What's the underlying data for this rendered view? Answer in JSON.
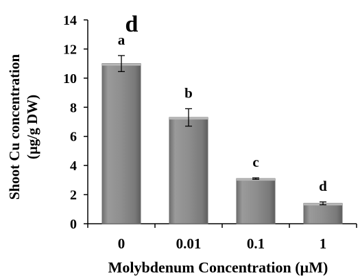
{
  "panel_letter": "d",
  "chart_data": {
    "type": "bar",
    "categories": [
      "0",
      "0.01",
      "0.1",
      "1"
    ],
    "values": [
      11.0,
      7.3,
      3.1,
      1.4
    ],
    "errors": [
      0.55,
      0.6,
      0.05,
      0.1
    ],
    "significance_letters": [
      "a",
      "b",
      "c",
      "d"
    ],
    "title": "",
    "xlabel": "Molybdenum Concentration (µM)",
    "ylabel_line1": "Shoot Cu concentration",
    "ylabel_line2": "(µg/g DW)",
    "ylim": [
      0,
      14
    ],
    "yticks": [
      0,
      2,
      4,
      6,
      8,
      10,
      12,
      14
    ],
    "yticks_text": [
      "0",
      "2",
      "4",
      "6",
      "8",
      "10",
      "12",
      "14"
    ],
    "grid": false,
    "legend": "none",
    "bar_color": "#8c8c8c"
  }
}
